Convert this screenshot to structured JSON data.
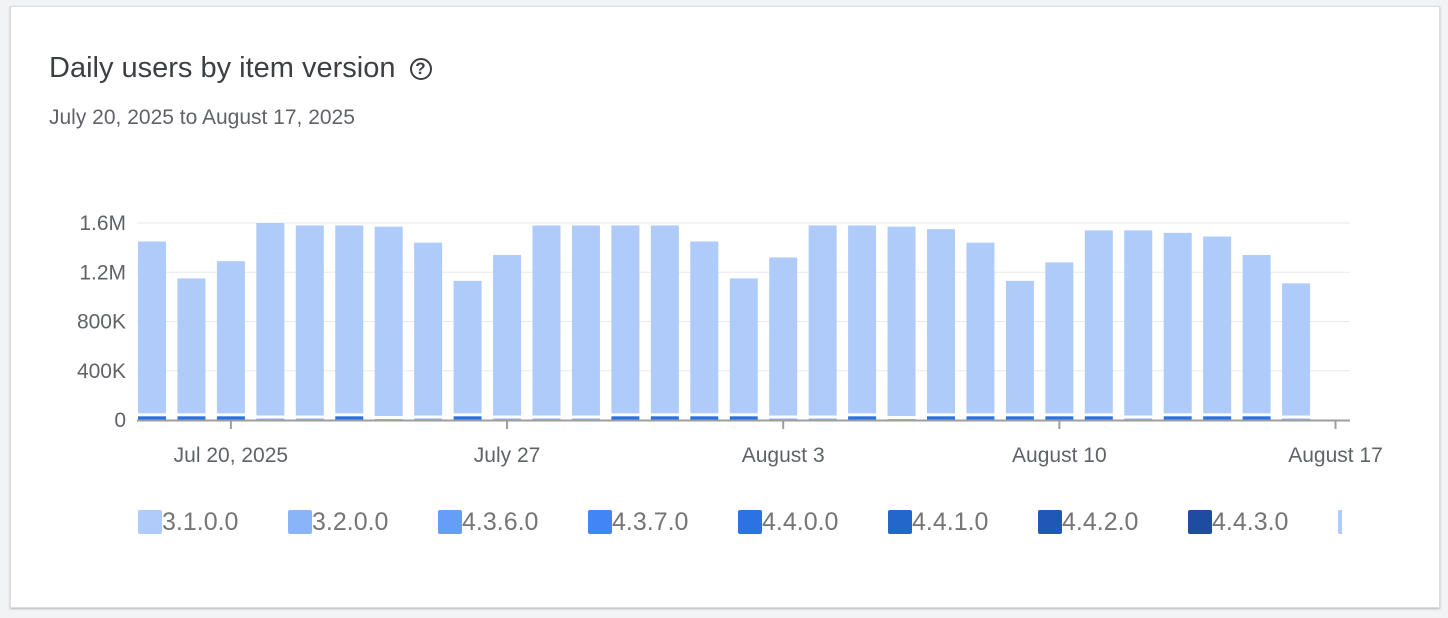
{
  "title": "Daily users by item version",
  "help_icon": "help-circle-icon",
  "subtitle": "July 20, 2025 to August 17, 2025",
  "chart_data": {
    "type": "bar",
    "stacked": true,
    "title": "Daily users by item version",
    "x": [
      "2025-07-18",
      "2025-07-19",
      "2025-07-20",
      "2025-07-21",
      "2025-07-22",
      "2025-07-23",
      "2025-07-24",
      "2025-07-25",
      "2025-07-26",
      "2025-07-27",
      "2025-07-28",
      "2025-07-29",
      "2025-07-30",
      "2025-07-31",
      "2025-08-01",
      "2025-08-02",
      "2025-08-03",
      "2025-08-04",
      "2025-08-05",
      "2025-08-06",
      "2025-08-07",
      "2025-08-08",
      "2025-08-09",
      "2025-08-10",
      "2025-08-11",
      "2025-08-12",
      "2025-08-13",
      "2025-08-14",
      "2025-08-15",
      "2025-08-16"
    ],
    "x_ticks": [
      {
        "date": "2025-07-20",
        "label": "Jul 20, 2025"
      },
      {
        "date": "2025-07-27",
        "label": "July 27"
      },
      {
        "date": "2025-08-03",
        "label": "August 3"
      },
      {
        "date": "2025-08-10",
        "label": "August 10"
      },
      {
        "date": "2025-08-17",
        "label": "August 17"
      }
    ],
    "y_ticks": [
      {
        "value": 0,
        "label": "0"
      },
      {
        "value": 400000,
        "label": "400K"
      },
      {
        "value": 800000,
        "label": "800K"
      },
      {
        "value": 1200000,
        "label": "1.2M"
      },
      {
        "value": 1600000,
        "label": "1.6M"
      }
    ],
    "ylim": [
      0,
      1600000
    ],
    "grid": true,
    "legend_position": "bottom",
    "series": [
      {
        "name": "4.4.0.0",
        "color": "#2a73e0",
        "values": [
          30000,
          30000,
          30000,
          0,
          0,
          30000,
          0,
          0,
          30000,
          0,
          0,
          0,
          30000,
          30000,
          30000,
          30000,
          0,
          0,
          30000,
          0,
          30000,
          30000,
          30000,
          30000,
          30000,
          0,
          30000,
          30000,
          30000,
          0
        ]
      },
      {
        "name": "3.2.0.0",
        "color": "#8ab4f8",
        "values": [
          0,
          0,
          0,
          12000,
          12000,
          0,
          8000,
          12000,
          0,
          12000,
          12000,
          12000,
          0,
          0,
          0,
          0,
          12000,
          12000,
          0,
          8000,
          0,
          0,
          0,
          0,
          0,
          12000,
          0,
          0,
          0,
          12000
        ]
      },
      {
        "name": "3.1.0.0",
        "color": "#aecbfa",
        "values": [
          1420000,
          1120000,
          1260000,
          1588000,
          1568000,
          1550000,
          1562000,
          1428000,
          1100000,
          1328000,
          1568000,
          1568000,
          1550000,
          1550000,
          1420000,
          1120000,
          1308000,
          1568000,
          1550000,
          1562000,
          1520000,
          1410000,
          1100000,
          1250000,
          1510000,
          1528000,
          1490000,
          1460000,
          1310000,
          1098000
        ]
      }
    ],
    "legend": [
      {
        "name": "3.1.0.0",
        "color": "#aecbfa"
      },
      {
        "name": "3.2.0.0",
        "color": "#8ab4f8"
      },
      {
        "name": "4.3.6.0",
        "color": "#669df6"
      },
      {
        "name": "4.3.7.0",
        "color": "#4285f4"
      },
      {
        "name": "4.4.0.0",
        "color": "#2a73e0"
      },
      {
        "name": "4.4.1.0",
        "color": "#2366cc"
      },
      {
        "name": "4.4.2.0",
        "color": "#2158b8"
      },
      {
        "name": "4.4.3.0",
        "color": "#1e4d9f"
      },
      {
        "name": "",
        "color": "#aecbfa"
      }
    ]
  }
}
